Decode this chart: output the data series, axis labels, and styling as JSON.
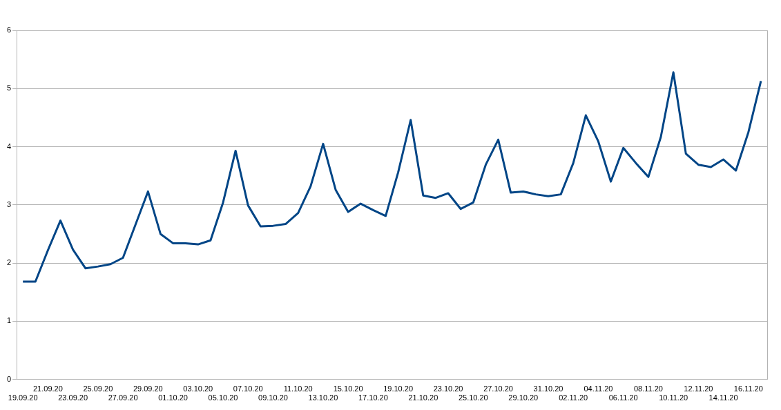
{
  "chart_data": {
    "type": "line",
    "categories": [
      "19.09.20",
      null,
      "21.09.20",
      null,
      "23.09.20",
      null,
      "25.09.20",
      null,
      "27.09.20",
      null,
      "29.09.20",
      null,
      "01.10.20",
      null,
      "03.10.20",
      null,
      "05.10.20",
      null,
      "07.10.20",
      null,
      "09.10.20",
      null,
      "11.10.20",
      null,
      "13.10.20",
      null,
      "15.10.20",
      null,
      "17.10.20",
      null,
      "19.10.20",
      null,
      "21.10.20",
      null,
      "23.10.20",
      null,
      "25.10.20",
      null,
      "27.10.20",
      null,
      "29.10.20",
      null,
      "31.10.20",
      null,
      "02.11.20",
      null,
      "04.11.20",
      null,
      "06.11.20",
      null,
      "08.11.20",
      null,
      "10.11.20",
      null,
      "12.11.20",
      null,
      "14.11.20",
      null,
      "16.11.20",
      null
    ],
    "values": [
      1.68,
      1.68,
      2.22,
      2.73,
      2.23,
      1.91,
      1.94,
      1.98,
      2.09,
      2.66,
      3.23,
      2.5,
      2.34,
      2.34,
      2.32,
      2.39,
      3.04,
      3.93,
      2.99,
      2.63,
      2.64,
      2.67,
      2.86,
      3.32,
      4.05,
      3.26,
      2.88,
      3.02,
      2.91,
      2.81,
      3.56,
      4.46,
      3.16,
      3.12,
      3.2,
      2.93,
      3.04,
      3.69,
      4.12,
      3.21,
      3.23,
      3.18,
      3.15,
      3.18,
      3.72,
      4.54,
      4.09,
      3.4,
      3.98,
      3.72,
      3.48,
      4.17,
      5.28,
      3.88,
      3.69,
      3.65,
      3.78,
      3.59,
      4.25,
      5.13
    ],
    "color": "#004586",
    "ylim": [
      0,
      6
    ],
    "yticks": [
      0,
      1,
      2,
      3,
      4,
      5,
      6
    ],
    "grid": "y",
    "marker": "none",
    "line_style": "solid"
  }
}
